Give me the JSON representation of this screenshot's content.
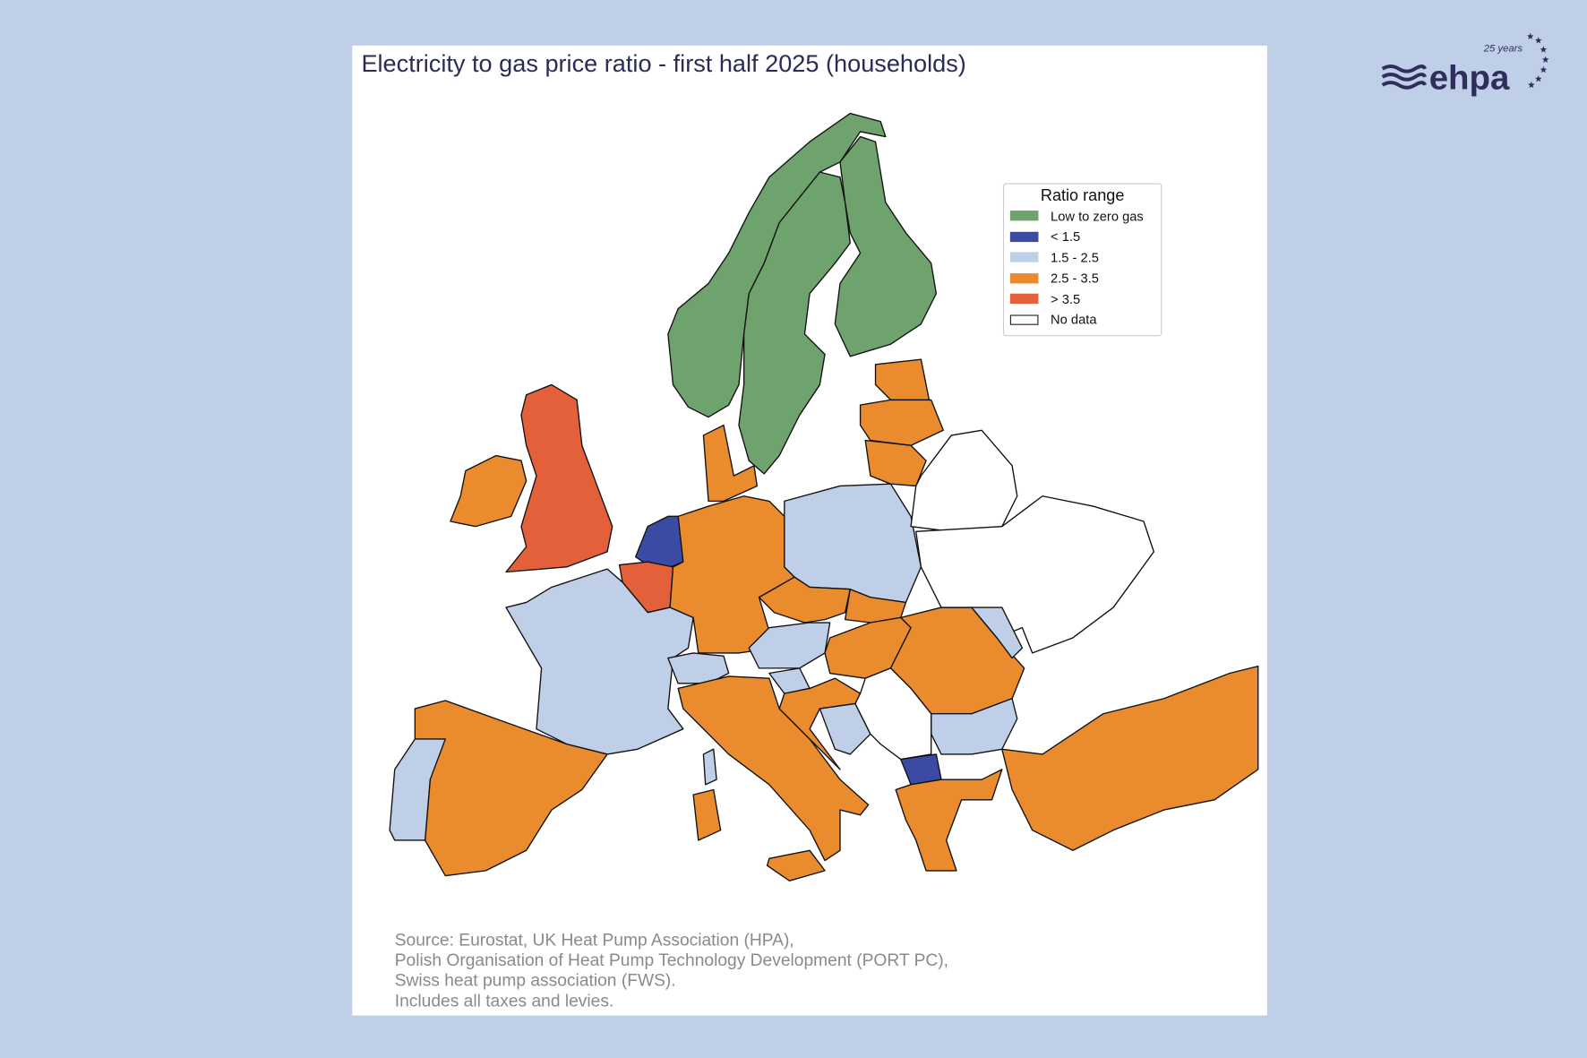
{
  "title": "Electricity to gas price ratio - first half 2025 (households)",
  "legend": {
    "title": "Ratio range",
    "items": [
      {
        "label": "Low to zero gas",
        "color": "#6fa36e"
      },
      {
        "label": "< 1.5",
        "color": "#3b4ba3"
      },
      {
        "label": "1.5 - 2.5",
        "color": "#bfcfe8"
      },
      {
        "label": "2.5 - 3.5",
        "color": "#ea8c2e"
      },
      {
        "label": "> 3.5",
        "color": "#e3603a"
      },
      {
        "label": "No data",
        "color": "#ffffff"
      }
    ]
  },
  "countries": [
    {
      "name": "Norway",
      "category": "Low to zero gas"
    },
    {
      "name": "Sweden",
      "category": "Low to zero gas"
    },
    {
      "name": "Finland",
      "category": "Low to zero gas"
    },
    {
      "name": "United Kingdom",
      "category": "> 3.5"
    },
    {
      "name": "Ireland",
      "category": "2.5 - 3.5"
    },
    {
      "name": "Netherlands",
      "category": "< 1.5"
    },
    {
      "name": "Belgium",
      "category": "> 3.5"
    },
    {
      "name": "France",
      "category": "1.5 - 2.5"
    },
    {
      "name": "Spain",
      "category": "2.5 - 3.5"
    },
    {
      "name": "Portugal",
      "category": "1.5 - 2.5"
    },
    {
      "name": "Germany",
      "category": "2.5 - 3.5"
    },
    {
      "name": "Denmark",
      "category": "2.5 - 3.5"
    },
    {
      "name": "Poland",
      "category": "1.5 - 2.5"
    },
    {
      "name": "Czechia",
      "category": "2.5 - 3.5"
    },
    {
      "name": "Slovakia",
      "category": "2.5 - 3.5"
    },
    {
      "name": "Austria",
      "category": "1.5 - 2.5"
    },
    {
      "name": "Switzerland",
      "category": "1.5 - 2.5"
    },
    {
      "name": "Hungary",
      "category": "2.5 - 3.5"
    },
    {
      "name": "Romania",
      "category": "2.5 - 3.5"
    },
    {
      "name": "Bulgaria",
      "category": "1.5 - 2.5"
    },
    {
      "name": "Italy",
      "category": "2.5 - 3.5"
    },
    {
      "name": "Sardinia",
      "category": "2.5 - 3.5"
    },
    {
      "name": "Sicily",
      "category": "2.5 - 3.5"
    },
    {
      "name": "Corsica",
      "category": "1.5 - 2.5"
    },
    {
      "name": "Slovenia",
      "category": "1.5 - 2.5"
    },
    {
      "name": "Croatia",
      "category": "2.5 - 3.5"
    },
    {
      "name": "Bosnia and Herzegovina",
      "category": "1.5 - 2.5"
    },
    {
      "name": "Serbia",
      "category": "No data"
    },
    {
      "name": "North Macedonia",
      "category": "< 1.5"
    },
    {
      "name": "Greece",
      "category": "2.5 - 3.5"
    },
    {
      "name": "Turkey",
      "category": "2.5 - 3.5"
    },
    {
      "name": "Estonia",
      "category": "2.5 - 3.5"
    },
    {
      "name": "Latvia",
      "category": "2.5 - 3.5"
    },
    {
      "name": "Lithuania",
      "category": "2.5 - 3.5"
    },
    {
      "name": "Belarus",
      "category": "No data"
    },
    {
      "name": "Ukraine",
      "category": "No data"
    },
    {
      "name": "Moldova",
      "category": "1.5 - 2.5"
    }
  ],
  "source_lines": [
    "Source: Eurostat, UK Heat Pump Association (HPA),",
    "Polish Organisation of Heat Pump Technology Development (PORT PC),",
    "Swiss heat pump association (FWS).",
    "Includes all taxes and levies."
  ],
  "logo": {
    "text": "ehpa",
    "tagline": "25 years"
  },
  "colors": {
    "background": "#c0cfe8",
    "title": "#2b2b55",
    "logo": "#2e2e5c"
  }
}
